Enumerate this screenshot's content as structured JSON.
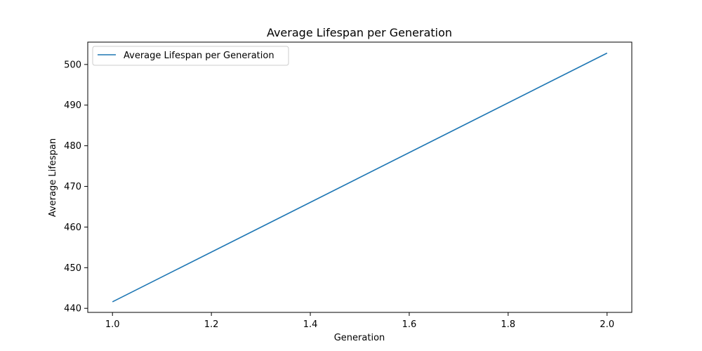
{
  "chart_data": {
    "type": "line",
    "title": "Average Lifespan per Generation",
    "xlabel": "Generation",
    "ylabel": "Average Lifespan",
    "xlim": [
      0.95,
      2.05
    ],
    "ylim": [
      439.0,
      505.5
    ],
    "xticks": [
      1.0,
      1.2,
      1.4,
      1.6,
      1.8,
      2.0
    ],
    "xtick_labels": [
      "1.0",
      "1.2",
      "1.4",
      "1.6",
      "1.8",
      "2.0"
    ],
    "yticks": [
      440,
      450,
      460,
      470,
      480,
      490,
      500
    ],
    "ytick_labels": [
      "440",
      "450",
      "460",
      "470",
      "480",
      "490",
      "500"
    ],
    "grid": false,
    "legend_position": "top-left",
    "series": [
      {
        "name": "Average Lifespan per Generation",
        "color": "#1f77b4",
        "x": [
          1.0,
          2.0
        ],
        "y": [
          441.6,
          502.8
        ]
      }
    ]
  }
}
